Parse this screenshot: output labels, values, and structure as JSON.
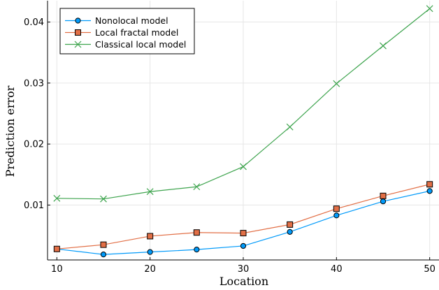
{
  "chart_data": {
    "type": "line",
    "title": "",
    "xlabel": "Location",
    "ylabel": "Prediction error",
    "x": [
      10,
      15,
      20,
      25,
      30,
      35,
      40,
      45,
      50
    ],
    "xlim": [
      9,
      51
    ],
    "ylim": [
      0.001,
      0.0435
    ],
    "x_ticks": [
      10,
      20,
      30,
      40,
      50
    ],
    "y_ticks": [
      0.01,
      0.02,
      0.03,
      0.04
    ],
    "x_tick_labels": [
      "10",
      "20",
      "30",
      "40",
      "50"
    ],
    "y_tick_labels": [
      "0.01",
      "0.02",
      "0.03",
      "0.04"
    ],
    "grid": true,
    "legend_position": "top-left",
    "series": [
      {
        "name": "Nonolocal model",
        "marker": "circle",
        "color": "#009AFA",
        "marker_color": "#009AFA",
        "values": [
          0.0028,
          0.0019,
          0.0023,
          0.0027,
          0.0033,
          0.0056,
          0.0083,
          0.0106,
          0.0123
        ]
      },
      {
        "name": "Local fractal model",
        "marker": "square",
        "color": "#E26F46",
        "marker_color": "#E26F46",
        "values": [
          0.0028,
          0.0035,
          0.0049,
          0.0055,
          0.0054,
          0.0068,
          0.0094,
          0.0115,
          0.0134
        ]
      },
      {
        "name": "Classical local model",
        "marker": "x",
        "color": "#3EA44E",
        "marker_color": "#3EA44E",
        "values": [
          0.0111,
          0.011,
          0.0122,
          0.013,
          0.0163,
          0.0228,
          0.0299,
          0.0361,
          0.0422
        ]
      }
    ]
  }
}
